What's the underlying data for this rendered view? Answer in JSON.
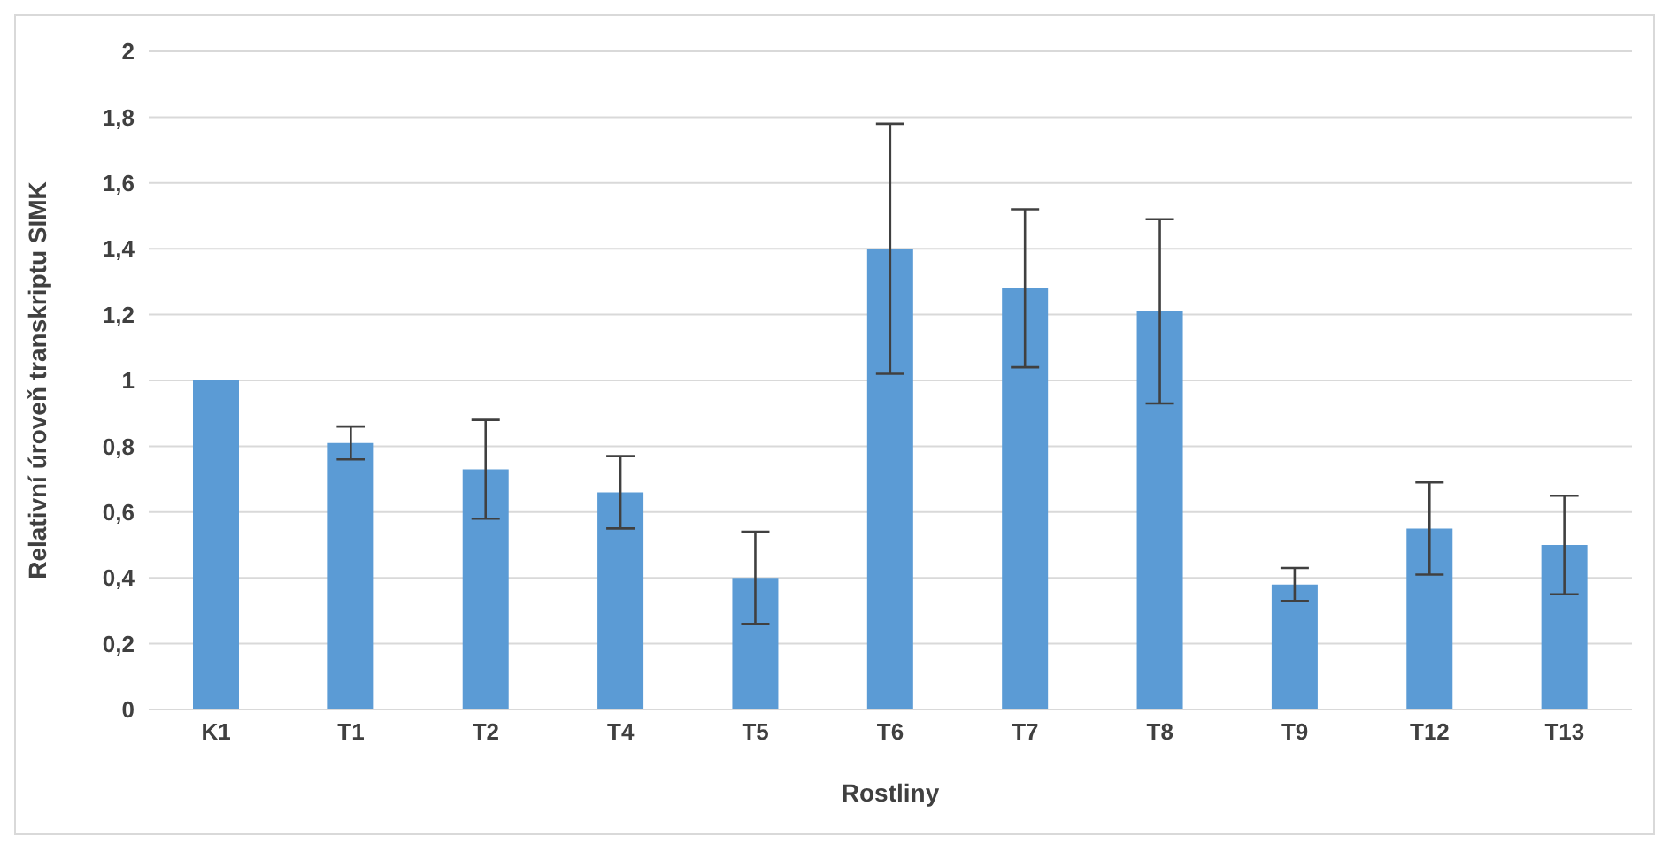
{
  "chart_data": {
    "type": "bar",
    "xlabel": "Rostliny",
    "ylabel": "Relativní úroveň transkriptu SIMK",
    "categories": [
      "K1",
      "T1",
      "T2",
      "T4",
      "T5",
      "T6",
      "T7",
      "T8",
      "T9",
      "T12",
      "T13"
    ],
    "values": [
      1.0,
      0.81,
      0.73,
      0.66,
      0.4,
      1.4,
      1.28,
      1.21,
      0.38,
      0.55,
      0.5
    ],
    "errors": [
      0,
      0.05,
      0.15,
      0.11,
      0.14,
      0.38,
      0.24,
      0.28,
      0.05,
      0.14,
      0.15
    ],
    "color": "#5b9bd5",
    "ylim": [
      0,
      2
    ],
    "yticks": [
      0,
      {
        "value": 0.2,
        "label": "0,2"
      },
      {
        "value": 0.4,
        "label": "0,4"
      },
      {
        "value": 0.6,
        "label": "0,6"
      },
      {
        "value": 0.8,
        "label": "0,8"
      },
      1,
      {
        "value": 1.2,
        "label": "1,2"
      },
      {
        "value": 1.4,
        "label": "1,4"
      },
      {
        "value": 1.6,
        "label": "1,6"
      },
      {
        "value": 1.8,
        "label": "1,8"
      },
      2
    ],
    "grid": "y",
    "legend": false
  }
}
